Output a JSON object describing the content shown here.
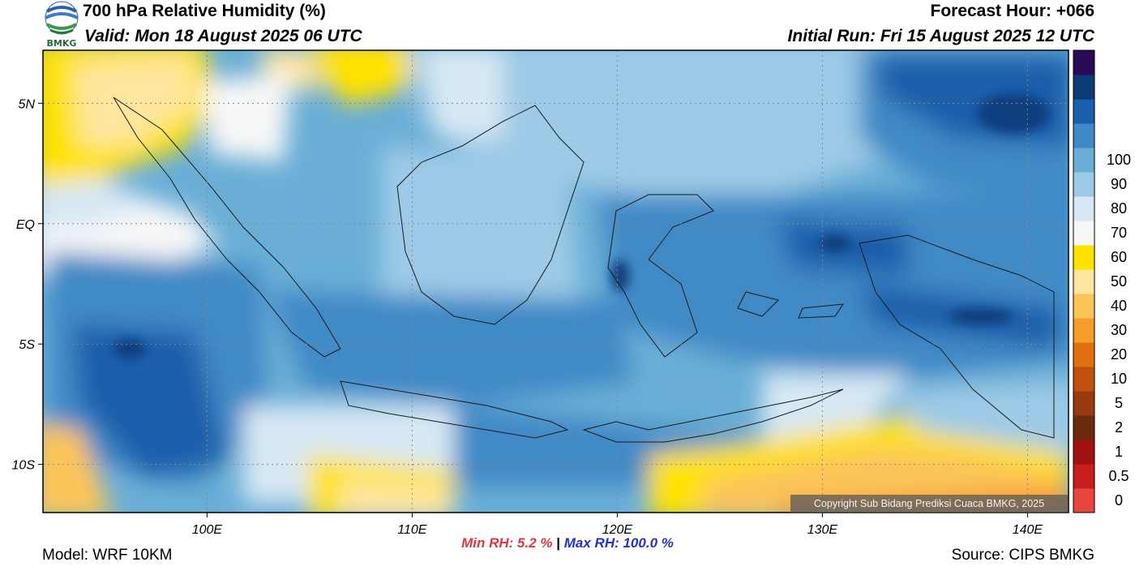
{
  "header": {
    "title": "700 hPa Relative Humidity (%)",
    "valid": "Valid: Mon 18 August 2025 06 UTC",
    "forecast_hour": "Forecast Hour: +066",
    "initial_run": "Initial Run: Fri 15 August 2025 12 UTC",
    "logo_text": "BMKG"
  },
  "map": {
    "lon_range": [
      92,
      142
    ],
    "lat_range": [
      -12,
      7.2
    ],
    "lon_ticks": [
      {
        "value": 100,
        "label": "100E"
      },
      {
        "value": 110,
        "label": "110E"
      },
      {
        "value": 120,
        "label": "120E"
      },
      {
        "value": 130,
        "label": "130E"
      },
      {
        "value": 140,
        "label": "140E"
      }
    ],
    "lat_ticks": [
      {
        "value": 5,
        "label": "5N"
      },
      {
        "value": 0,
        "label": "EQ"
      },
      {
        "value": -5,
        "label": "5S"
      },
      {
        "value": -10,
        "label": "10S"
      }
    ]
  },
  "colorbar": {
    "bands": [
      {
        "label": "0",
        "color": "#e8453c"
      },
      {
        "label": "0.5",
        "color": "#c81e1e"
      },
      {
        "label": "1",
        "color": "#a01212"
      },
      {
        "label": "2",
        "color": "#6a2a0e"
      },
      {
        "label": "5",
        "color": "#983a10"
      },
      {
        "label": "10",
        "color": "#c0500e"
      },
      {
        "label": "20",
        "color": "#e07010"
      },
      {
        "label": "30",
        "color": "#f79b2d"
      },
      {
        "label": "40",
        "color": "#fcc55a"
      },
      {
        "label": "50",
        "color": "#ffe59e"
      },
      {
        "label": "60",
        "color": "#ffe200"
      },
      {
        "label": "70",
        "color": "#f7f7f7"
      },
      {
        "label": "80",
        "color": "#d7e8f4"
      },
      {
        "label": "90",
        "color": "#9dcae6"
      },
      {
        "label": "100",
        "color": "#6aaed6"
      },
      {
        "label": "",
        "color": "#3f8ac6"
      },
      {
        "label": "",
        "color": "#1c5fab"
      },
      {
        "label": "",
        "color": "#0b3a78"
      },
      {
        "label": "",
        "color": "#2b0a55"
      }
    ],
    "tick_labels": [
      "100",
      "90",
      "80",
      "70",
      "60",
      "50",
      "40",
      "30",
      "20",
      "10",
      "5",
      "2",
      "1",
      "0.5",
      "0"
    ]
  },
  "stats": {
    "min": "Min RH:   5.2 %",
    "separator": "|",
    "max": "Max RH: 100.0 %"
  },
  "footer": {
    "model": "Model: WRF 10KM",
    "source": "Source: CIPS BMKG",
    "copyright": "Copyright Sub Bidang Prediksi Cuaca BMKG, 2025"
  }
}
